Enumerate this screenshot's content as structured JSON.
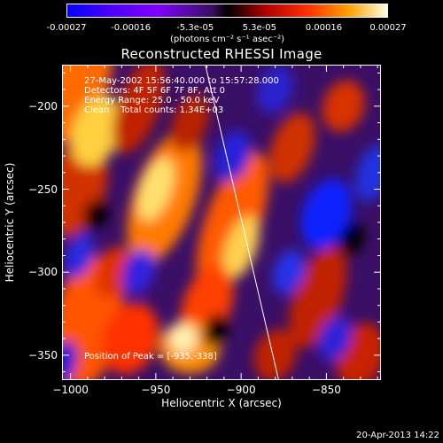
{
  "chart_data": {
    "type": "heatmap",
    "title": "Reconstructed RHESSI Image",
    "xlabel": "Heliocentric X (arcsec)",
    "ylabel": "Heliocentric Y (arcsec)",
    "xlim": [
      -1005,
      -818
    ],
    "ylim": [
      -365,
      -175
    ],
    "x_ticks": [
      -1000,
      -950,
      -900,
      -850
    ],
    "y_ticks": [
      -200,
      -250,
      -300,
      -350
    ],
    "colorbar": {
      "ticks": [
        "-0.00027",
        "-0.00016",
        "-5.3e-05",
        "5.3e-05",
        "0.00016",
        "0.00027"
      ],
      "unit_label": "(photons cm⁻² s⁻¹ asec⁻²)",
      "range": [
        -0.00027,
        0.00027
      ]
    },
    "annotations": [
      "27-May-2002 15:56:40.000 to 15:57:28.000",
      "Detectors: 4F 5F 6F 7F 8F, Att 0",
      "Energy Range: 25.0 - 50.0 keV",
      "Clean    Total counts: 1.34E+03"
    ],
    "peak_label": "Position of Peak = [-935,-338]",
    "peak_position": [
      -935,
      -338
    ],
    "limb_line": [
      [
        -921,
        -175
      ],
      [
        -878,
        -365
      ]
    ]
  },
  "footer": {
    "date_stamp": "20-Apr-2013 14:22"
  }
}
